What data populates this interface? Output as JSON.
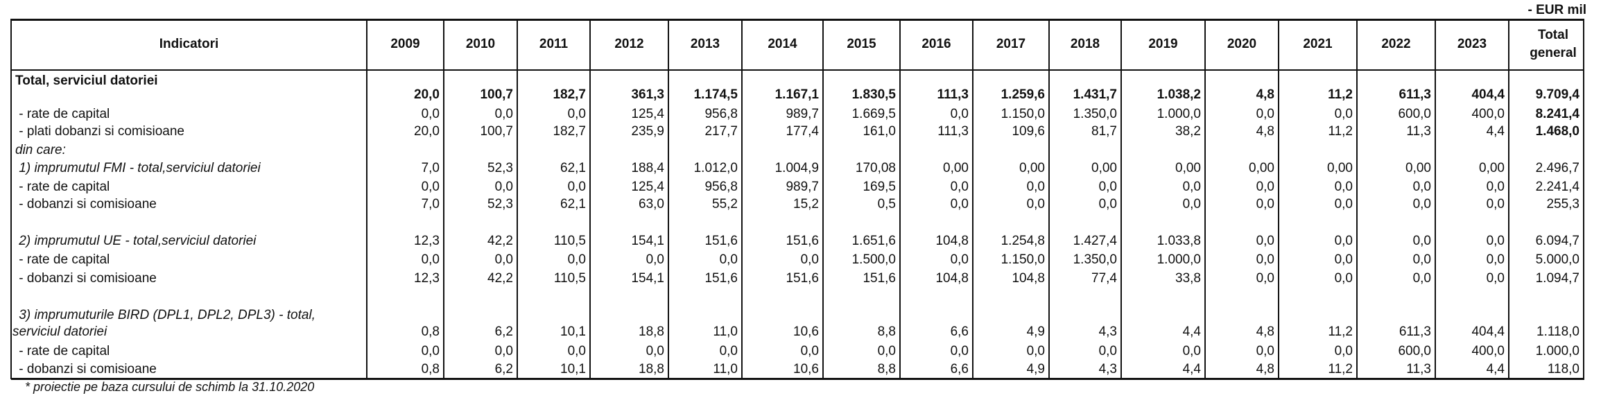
{
  "unit": "- EUR mil",
  "header": {
    "indicator": "Indicatori",
    "years": [
      "2009",
      "2010",
      "2011",
      "2012",
      "2013",
      "2014",
      "2015",
      "2016",
      "2017",
      "2018",
      "2019",
      "2020",
      "2021",
      "2022",
      "2023"
    ],
    "total": "Total general"
  },
  "rows": [
    {
      "label": "Total, serviciul datoriei",
      "label_separate_line": true,
      "bold": true,
      "italic": false,
      "total_bold": true,
      "values": [
        "20,0",
        "100,7",
        "182,7",
        "361,3",
        "1.174,5",
        "1.167,1",
        "1.830,5",
        "111,3",
        "1.259,6",
        "1.431,7",
        "1.038,2",
        "4,8",
        "11,2",
        "611,3",
        "404,4"
      ],
      "total": "9.709,4"
    },
    {
      "label": " - rate de capital",
      "bold": false,
      "italic": false,
      "total_bold": true,
      "values": [
        "0,0",
        "0,0",
        "0,0",
        "125,4",
        "956,8",
        "989,7",
        "1.669,5",
        "0,0",
        "1.150,0",
        "1.350,0",
        "1.000,0",
        "0,0",
        "0,0",
        "600,0",
        "400,0"
      ],
      "total": "8.241,4"
    },
    {
      "label": " - plati dobanzi si comisioane",
      "bold": false,
      "italic": false,
      "total_bold": true,
      "values": [
        "20,0",
        "100,7",
        "182,7",
        "235,9",
        "217,7",
        "177,4",
        "161,0",
        "111,3",
        "109,6",
        "81,7",
        "38,2",
        "4,8",
        "11,2",
        "11,3",
        "4,4"
      ],
      "total": "1.468,0"
    },
    {
      "label": "din care:",
      "bold": false,
      "italic": true,
      "values": [],
      "total": ""
    },
    {
      "label": " 1) imprumutul FMI - total,serviciul datoriei",
      "bold": false,
      "italic": true,
      "values": [
        "7,0",
        "52,3",
        "62,1",
        "188,4",
        "1.012,0",
        "1.004,9",
        "170,08",
        "0,00",
        "0,00",
        "0,00",
        "0,00",
        "0,00",
        "0,00",
        "0,00",
        "0,00"
      ],
      "total": "2.496,7"
    },
    {
      "label": " - rate de capital",
      "bold": false,
      "italic": false,
      "values": [
        "0,0",
        "0,0",
        "0,0",
        "125,4",
        "956,8",
        "989,7",
        "169,5",
        "0,0",
        "0,0",
        "0,0",
        "0,0",
        "0,0",
        "0,0",
        "0,0",
        "0,0"
      ],
      "total": "2.241,4"
    },
    {
      "label": " - dobanzi si comisioane",
      "bold": false,
      "italic": false,
      "values": [
        "7,0",
        "52,3",
        "62,1",
        "63,0",
        "55,2",
        "15,2",
        "0,5",
        "0,0",
        "0,0",
        "0,0",
        "0,0",
        "0,0",
        "0,0",
        "0,0",
        "0,0"
      ],
      "total": "255,3"
    },
    {
      "label": " 2) imprumutul UE - total,serviciul datoriei",
      "bold": false,
      "italic": true,
      "values": [
        "12,3",
        "42,2",
        "110,5",
        "154,1",
        "151,6",
        "151,6",
        "1.651,6",
        "104,8",
        "1.254,8",
        "1.427,4",
        "1.033,8",
        "0,0",
        "0,0",
        "0,0",
        "0,0"
      ],
      "total": "6.094,7"
    },
    {
      "label": " - rate de capital",
      "bold": false,
      "italic": false,
      "values": [
        "0,0",
        "0,0",
        "0,0",
        "0,0",
        "0,0",
        "0,0",
        "1.500,0",
        "0,0",
        "1.150,0",
        "1.350,0",
        "1.000,0",
        "0,0",
        "0,0",
        "0,0",
        "0,0"
      ],
      "total": "5.000,0"
    },
    {
      "label": " - dobanzi si comisioane",
      "bold": false,
      "italic": false,
      "values": [
        "12,3",
        "42,2",
        "110,5",
        "154,1",
        "151,6",
        "151,6",
        "151,6",
        "104,8",
        "104,8",
        "77,4",
        "33,8",
        "0,0",
        "0,0",
        "0,0",
        "0,0"
      ],
      "total": "1.094,7"
    },
    {
      "label": " 3) imprumuturile BIRD (DPL1, DPL2, DPL3) - total,",
      "label2": "serviciul datoriei",
      "bold": false,
      "italic": true,
      "values": [
        "0,8",
        "6,2",
        "10,1",
        "18,8",
        "11,0",
        "10,6",
        "8,8",
        "6,6",
        "4,9",
        "4,3",
        "4,4",
        "4,8",
        "11,2",
        "611,3",
        "404,4"
      ],
      "total": "1.118,0"
    },
    {
      "label": " - rate de capital",
      "bold": false,
      "italic": false,
      "values": [
        "0,0",
        "0,0",
        "0,0",
        "0,0",
        "0,0",
        "0,0",
        "0,0",
        "0,0",
        "0,0",
        "0,0",
        "0,0",
        "0,0",
        "0,0",
        "600,0",
        "400,0"
      ],
      "total": "1.000,0"
    },
    {
      "label": " - dobanzi si comisioane",
      "bold": false,
      "italic": false,
      "values": [
        "0,8",
        "6,2",
        "10,1",
        "18,8",
        "11,0",
        "10,6",
        "8,8",
        "6,6",
        "4,9",
        "4,3",
        "4,4",
        "4,8",
        "11,2",
        "11,3",
        "4,4"
      ],
      "total": "118,0"
    }
  ],
  "footnote": "* proiectie pe baza cursului de schimb la 31.10.2020"
}
